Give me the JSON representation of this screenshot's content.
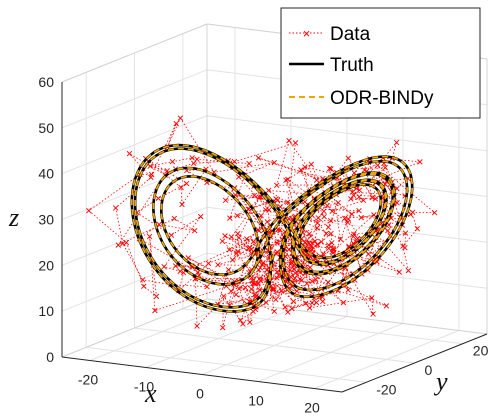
{
  "chart_data": {
    "type": "scatter",
    "projection": "3d",
    "grid": true,
    "legend_position": "top-right",
    "xlabel": "x",
    "ylabel": "y",
    "zlabel": "z",
    "xlim": [
      -25,
      25
    ],
    "ylim": [
      -30,
      30
    ],
    "zlim": [
      0,
      60
    ],
    "x_ticks": [
      "-20",
      "-10",
      "0",
      "10",
      "20"
    ],
    "y_ticks": [
      "-20",
      "0",
      "20"
    ],
    "z_ticks": [
      "0",
      "10",
      "20",
      "30",
      "40",
      "50",
      "60"
    ],
    "series": [
      {
        "name": "Data",
        "style": "red dotted line with x markers",
        "color": "#ff0000",
        "trajectory": "Lorenz attractor (sigma=10, rho=28, beta=8/3) with additive noise",
        "point_count_approx": 420,
        "noise_std_approx": 3.5
      },
      {
        "name": "Truth",
        "style": "solid black line",
        "color": "#000000",
        "trajectory": "Lorenz attractor (sigma=10, rho=28, beta=8/3)",
        "lobe_centers": [
          [
            -8.5,
            -8.5,
            27
          ],
          [
            8.5,
            8.5,
            27
          ]
        ]
      },
      {
        "name": "ODR-BINDy",
        "style": "dashed orange line",
        "color": "#f0a500",
        "trajectory": "identified Lorenz model, overlaps Truth"
      }
    ]
  }
}
